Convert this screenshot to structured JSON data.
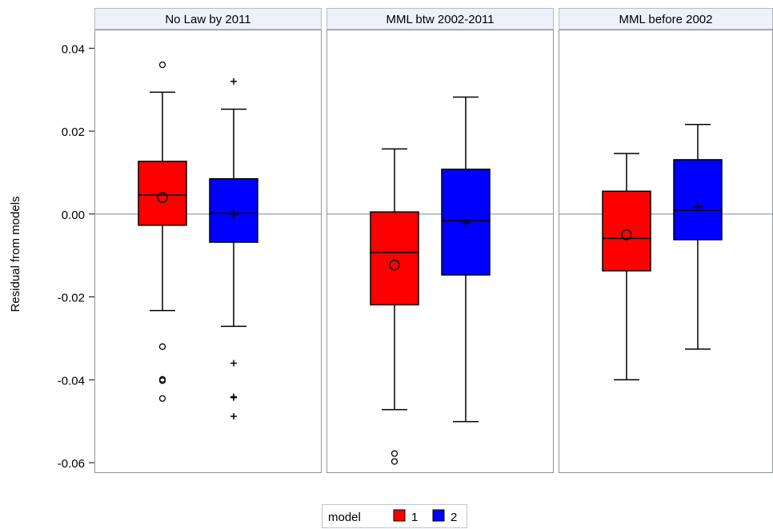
{
  "chart_data": {
    "type": "box",
    "ylabel": "Residual from models",
    "yticks": [
      0.04,
      0.02,
      0.0,
      -0.02,
      -0.04,
      -0.06
    ],
    "ytick_labels": [
      "0.04",
      "0.02",
      "0.00",
      "-0.02",
      "-0.04",
      "-0.06"
    ],
    "ylim": [
      -0.0625,
      0.0445
    ],
    "reference_line": 0.0,
    "legend": {
      "title": "model",
      "position": "bottom-center",
      "entries": [
        "1",
        "2"
      ]
    },
    "colors": {
      "1": "#ff0000",
      "2": "#0000ff"
    },
    "mean_markers": {
      "1": "circle",
      "2": "plus"
    },
    "panels": [
      {
        "title": "No Law by 2011",
        "boxes": [
          {
            "model": "1",
            "whisker_low": -0.0233,
            "q1": -0.0027,
            "median": 0.0046,
            "q3": 0.0127,
            "whisker_high": 0.0294,
            "mean": 0.004,
            "outliers": [
              0.036,
              -0.032,
              -0.0399,
              -0.0402,
              -0.0445
            ]
          },
          {
            "model": "2",
            "whisker_low": -0.0271,
            "q1": -0.0068,
            "median": 0.0002,
            "q3": 0.0085,
            "whisker_high": 0.0253,
            "mean": 0.0,
            "outliers": [
              0.032,
              -0.036,
              -0.0441,
              -0.0443,
              -0.0488
            ]
          }
        ]
      },
      {
        "title": "MML btw 2002-2011",
        "boxes": [
          {
            "model": "1",
            "whisker_low": -0.0472,
            "q1": -0.0219,
            "median": -0.0093,
            "q3": 0.0005,
            "whisker_high": 0.0157,
            "mean": -0.0123,
            "outliers": [
              -0.0578,
              -0.0597
            ]
          },
          {
            "model": "2",
            "whisker_low": -0.0501,
            "q1": -0.0147,
            "median": -0.0016,
            "q3": 0.0108,
            "whisker_high": 0.0282,
            "mean": -0.0022,
            "outliers": []
          }
        ]
      },
      {
        "title": "MML before 2002",
        "boxes": [
          {
            "model": "1",
            "whisker_low": -0.04,
            "q1": -0.0137,
            "median": -0.0059,
            "q3": 0.0055,
            "whisker_high": 0.0146,
            "mean": -0.005,
            "outliers": []
          },
          {
            "model": "2",
            "whisker_low": -0.0326,
            "q1": -0.0062,
            "median": 0.0009,
            "q3": 0.0131,
            "whisker_high": 0.0216,
            "mean": 0.0018,
            "outliers": []
          }
        ]
      }
    ]
  }
}
